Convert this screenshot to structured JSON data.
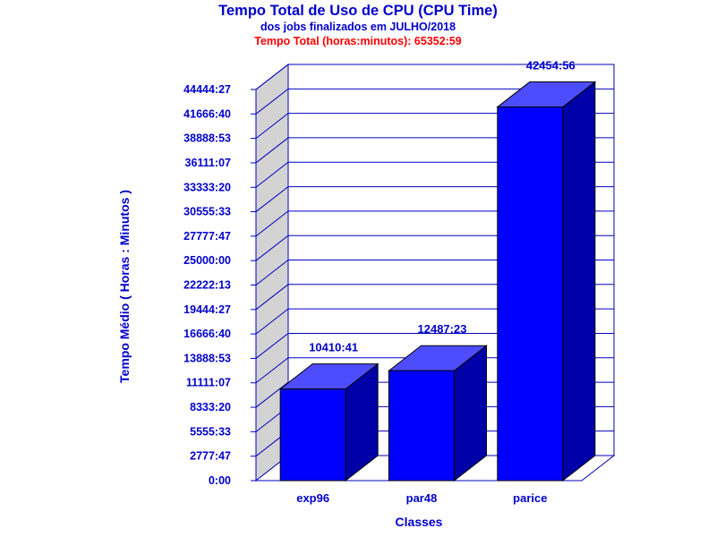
{
  "chart_data": {
    "type": "bar",
    "title": "Tempo Total de Uso de CPU (CPU Time)",
    "subtitle": "dos jobs finalizados em JULHO/2018",
    "total_label": "Tempo Total (horas:minutos): 65352:59",
    "xlabel": "Classes",
    "ylabel": "Tempo Médio ( Horas : Minutos )",
    "categories": [
      "exp96",
      "par48",
      "parice"
    ],
    "values": [
      10410.68,
      12487.38,
      42454.93
    ],
    "value_labels": [
      "10410:41",
      "12487:23",
      "42454:56"
    ],
    "yticks": [
      0,
      2777.78,
      5555.55,
      8333.33,
      11111.12,
      13888.88,
      16666.67,
      19444.45,
      22222.22,
      25000,
      27777.78,
      30555.55,
      33333.33,
      36111.12,
      38888.88,
      41666.67,
      44444.45
    ],
    "ytick_labels": [
      "0:00",
      "2777:47",
      "5555:33",
      "8333:20",
      "11111:07",
      "13888:53",
      "16666:40",
      "19444:27",
      "22222:13",
      "25000:00",
      "27777:47",
      "30555:33",
      "33333:20",
      "36111:07",
      "38888:53",
      "41666:40",
      "44444:27"
    ],
    "ylim": [
      0,
      44444.45
    ],
    "grid": true,
    "legend": "none",
    "colors": {
      "bar_front": "#0000ff",
      "bar_top": "#4d4dff",
      "bar_side": "#0000a8",
      "axis": "#0000c0",
      "label": "#0000cc",
      "total": "#ff0000",
      "wall": "#d3d3d3"
    }
  }
}
